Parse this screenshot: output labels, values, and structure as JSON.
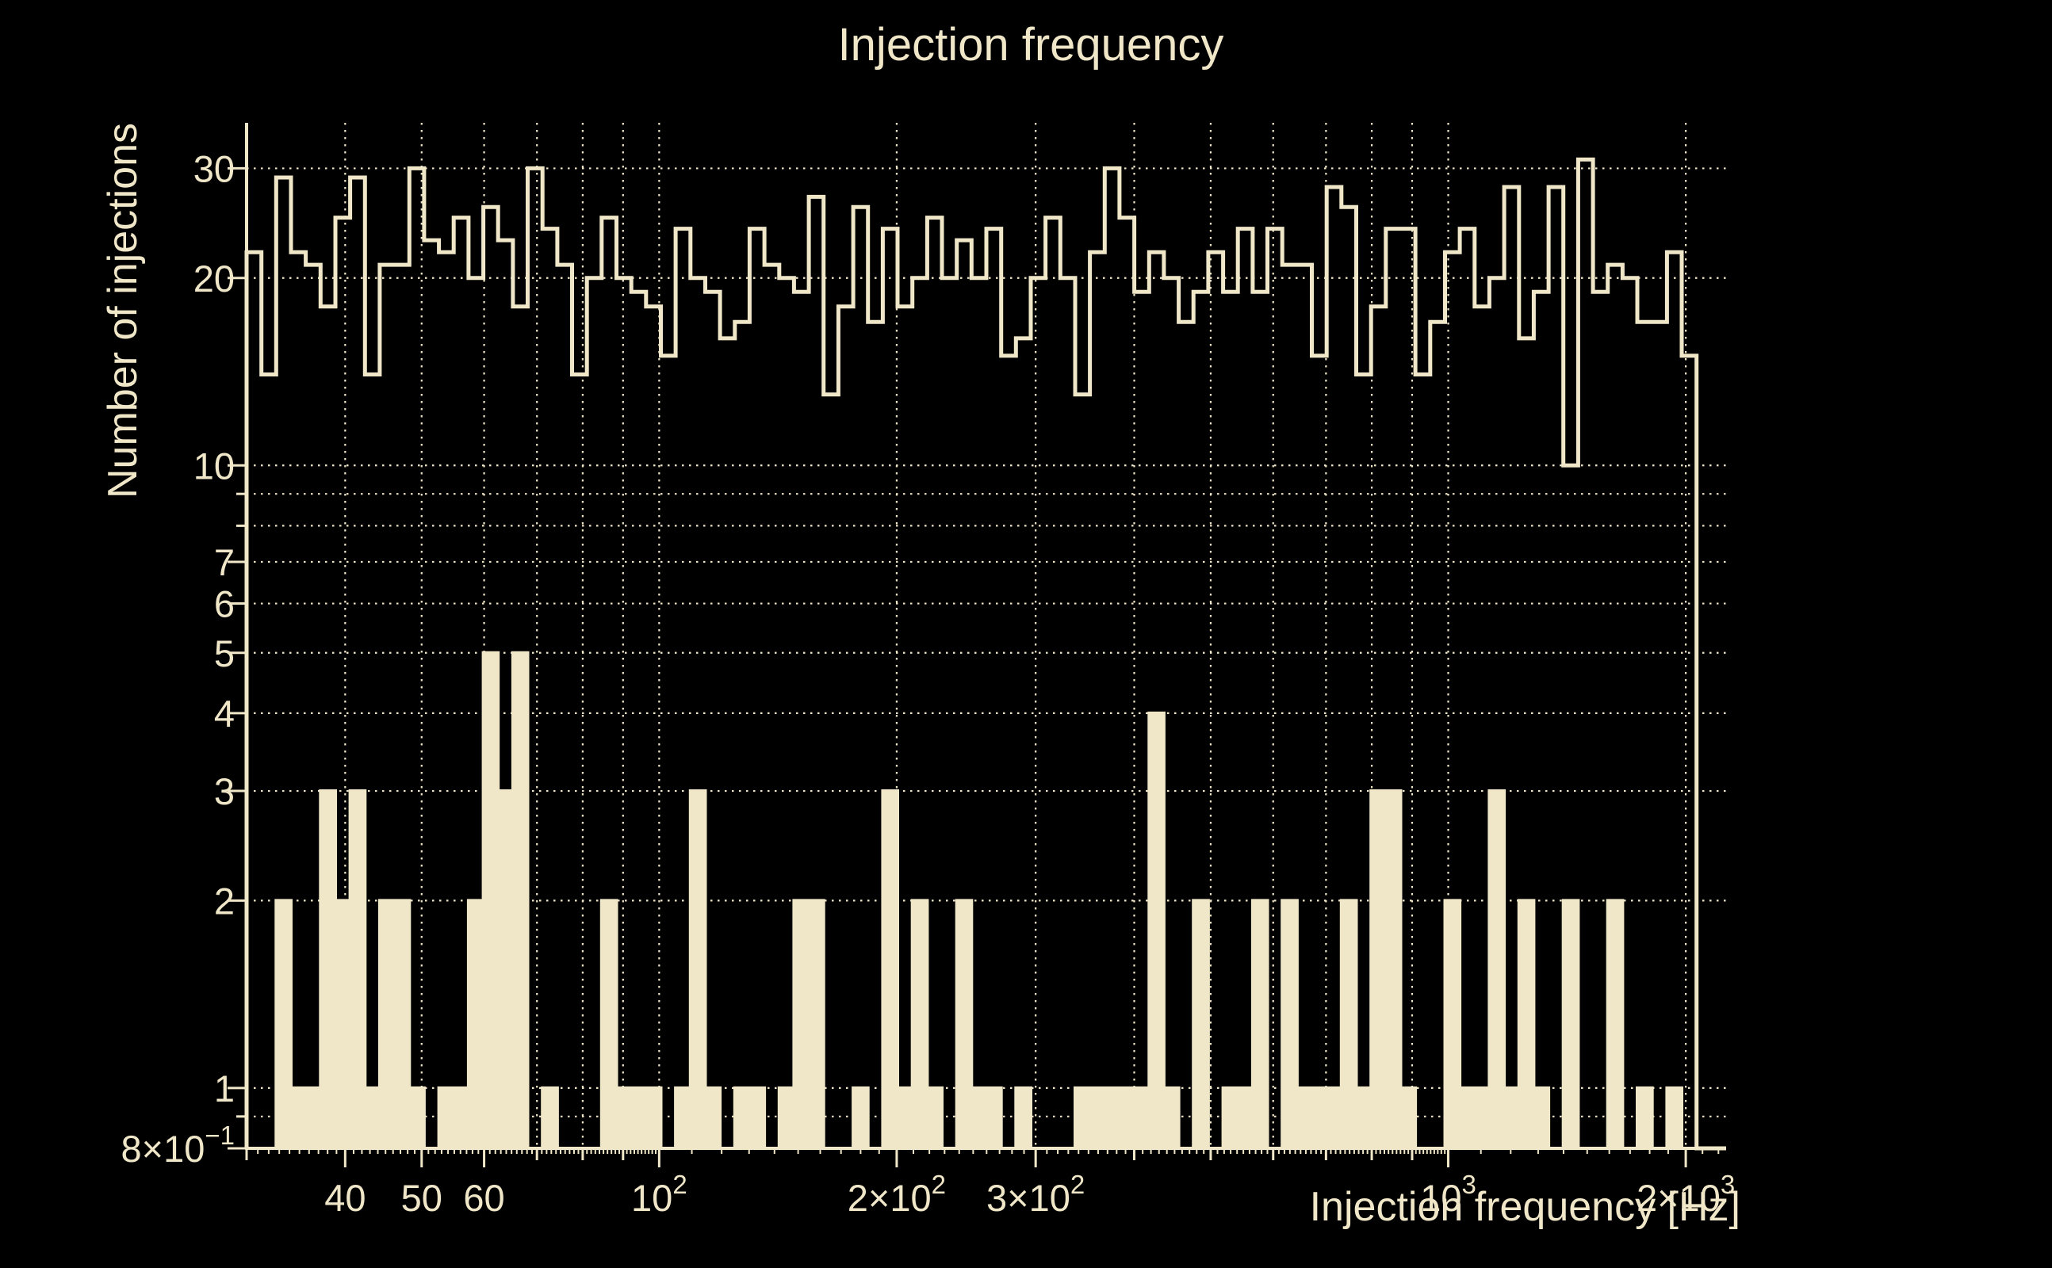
{
  "title": "Injection frequency",
  "colors": {
    "background": "#000000",
    "foreground": "#f0e6c8"
  },
  "axes": {
    "x": {
      "label": "Injection frequency [Hz]",
      "scale": "log",
      "min": 30,
      "max": 2250,
      "major_tick_labels": [
        {
          "v": 40,
          "t": "40"
        },
        {
          "v": 50,
          "t": "50"
        },
        {
          "v": 60,
          "t": "60"
        },
        {
          "v": 100,
          "t": "10",
          "sup": "2"
        },
        {
          "v": 200,
          "t": "2×10",
          "sup": "2"
        },
        {
          "v": 300,
          "t": "3×10",
          "sup": "2"
        },
        {
          "v": 1000,
          "t": "10",
          "sup": "3"
        },
        {
          "v": 2000,
          "t": "2×10",
          "sup": "3"
        }
      ],
      "grid": [
        40,
        50,
        60,
        70,
        80,
        90,
        100,
        200,
        300,
        400,
        500,
        600,
        700,
        800,
        900,
        1000,
        2000
      ]
    },
    "y": {
      "label": "Number of injections",
      "scale": "log",
      "min": 0.8,
      "max": 35.5,
      "major_tick_labels": [
        {
          "v": 30,
          "t": "30"
        },
        {
          "v": 20,
          "t": "20"
        },
        {
          "v": 10,
          "t": "10"
        },
        {
          "v": 7,
          "t": "7"
        },
        {
          "v": 6,
          "t": "6"
        },
        {
          "v": 5,
          "t": "5"
        },
        {
          "v": 4,
          "t": "4"
        },
        {
          "v": 3,
          "t": "3"
        },
        {
          "v": 2,
          "t": "2"
        },
        {
          "v": 1,
          "t": "1"
        },
        {
          "v": 0.8,
          "t": "8×10",
          "sup": "−1"
        }
      ],
      "grid": [
        0.9,
        1,
        2,
        3,
        4,
        5,
        6,
        7,
        8,
        9,
        10,
        20,
        30
      ],
      "medium_ticks": [
        0.8,
        0.9,
        1,
        2,
        3,
        4,
        5,
        6,
        7,
        8,
        9,
        10,
        20,
        30
      ]
    }
  },
  "chart_data": {
    "type": "bar",
    "subtype": "log-log step histograms, 100 log-spaced bins",
    "title": "Injection frequency",
    "xlabel": "Injection frequency [Hz]",
    "ylabel": "Number of injections",
    "xlim": [
      30,
      2250
    ],
    "ylim": [
      0.8,
      35.5
    ],
    "grid": "dotted",
    "legend": "none",
    "bins": {
      "count": 100,
      "edge_min_hz": 30,
      "edge_max_hz": 2250,
      "spacing": "log"
    },
    "series": [
      {
        "name": "outline_histogram",
        "style": "step-outline",
        "values": [
          22,
          14,
          29,
          22,
          21,
          18,
          25,
          29,
          14,
          21,
          21,
          30,
          23,
          22,
          25,
          20,
          26,
          23,
          18,
          30,
          24,
          21,
          14,
          20,
          25,
          20,
          19,
          18,
          15,
          24,
          20,
          19,
          16,
          17,
          24,
          21,
          20,
          19,
          27,
          13,
          18,
          26,
          17,
          24,
          18,
          20,
          25,
          20,
          23,
          20,
          24,
          15,
          16,
          20,
          25,
          20,
          13,
          22,
          30,
          25,
          19,
          22,
          20,
          17,
          19,
          22,
          19,
          24,
          19,
          24,
          21,
          21,
          15,
          28,
          26,
          14,
          18,
          24,
          24,
          14,
          17,
          22,
          24,
          18,
          20,
          28,
          16,
          19,
          28,
          10,
          31,
          19,
          21,
          20,
          17,
          17,
          22,
          15,
          0,
          0
        ]
      },
      {
        "name": "filled_histogram",
        "style": "filled",
        "values": [
          0,
          0,
          2,
          1,
          1,
          3,
          2,
          3,
          1,
          2,
          2,
          1,
          0,
          1,
          1,
          2,
          5,
          3,
          5,
          0,
          1,
          0,
          0,
          0,
          2,
          1,
          1,
          1,
          0,
          1,
          3,
          1,
          0,
          1,
          1,
          0,
          1,
          2,
          2,
          0,
          0,
          1,
          0,
          3,
          1,
          2,
          1,
          0,
          2,
          1,
          1,
          0,
          1,
          0,
          0,
          0,
          1,
          1,
          1,
          1,
          1,
          4,
          1,
          0,
          2,
          0,
          1,
          1,
          2,
          0,
          2,
          1,
          1,
          1,
          2,
          1,
          3,
          3,
          1,
          0,
          0,
          2,
          1,
          1,
          3,
          1,
          2,
          1,
          0,
          2,
          0,
          0,
          2,
          0,
          1,
          0,
          1,
          0,
          0,
          0
        ]
      }
    ]
  }
}
